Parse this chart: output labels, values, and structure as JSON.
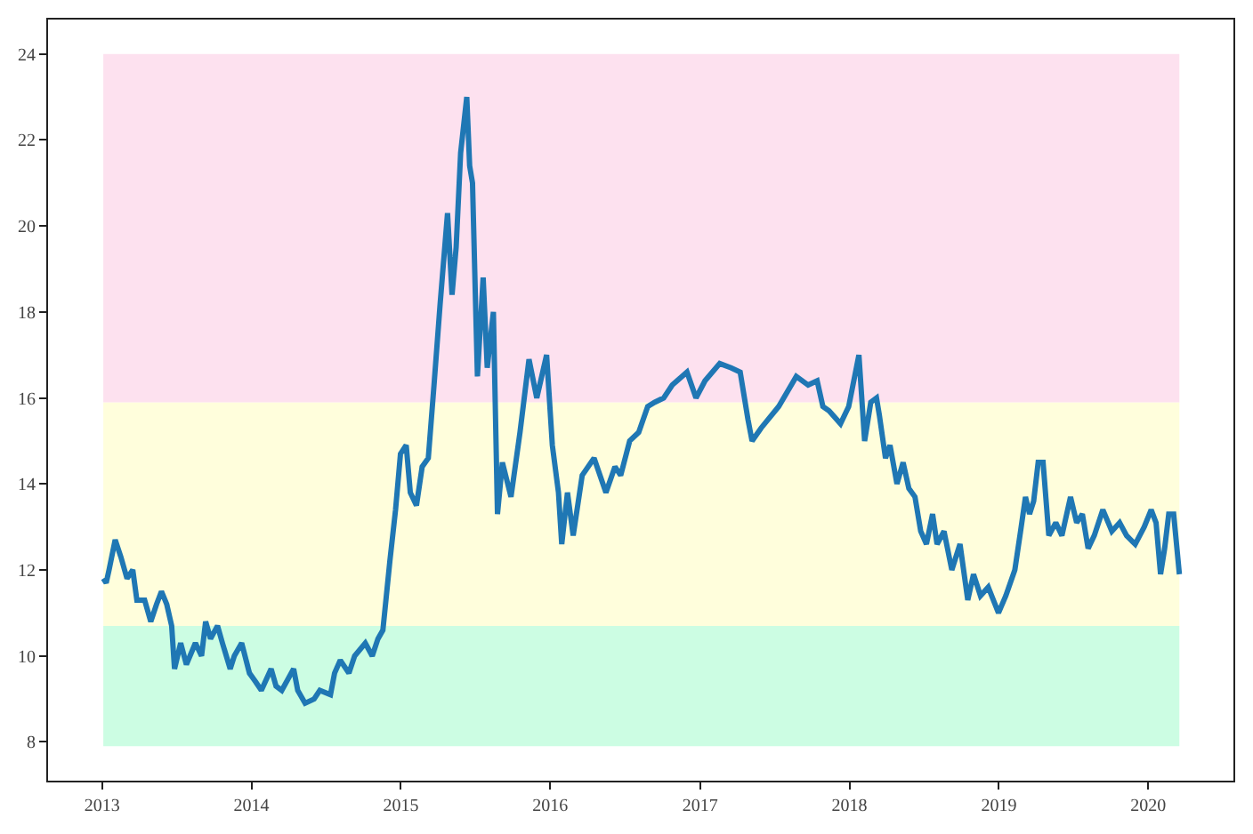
{
  "chart_data": {
    "type": "line",
    "x": [
      "2013-01-04",
      "2013-01-11",
      "2013-01-18",
      "2013-02-02",
      "2013-02-16",
      "2013-03-03",
      "2013-03-17",
      "2013-03-27",
      "2013-04-15",
      "2013-04-30",
      "2013-05-14",
      "2013-05-26",
      "2013-06-08",
      "2013-06-20",
      "2013-06-27",
      "2013-07-12",
      "2013-07-26",
      "2013-08-17",
      "2013-09-01",
      "2013-09-11",
      "2013-09-23",
      "2013-10-10",
      "2013-10-22",
      "2013-11-10",
      "2013-11-20",
      "2013-12-08",
      "2013-12-27",
      "2014-01-11",
      "2014-01-25",
      "2014-02-18",
      "2014-03-02",
      "2014-03-16",
      "2014-04-14",
      "2014-04-24",
      "2014-05-12",
      "2014-06-03",
      "2014-06-17",
      "2014-07-13",
      "2014-07-23",
      "2014-08-06",
      "2014-08-27",
      "2014-09-10",
      "2014-10-06",
      "2014-10-23",
      "2014-11-06",
      "2014-11-18",
      "2014-12-05",
      "2014-12-19",
      "2014-12-31",
      "2015-01-14",
      "2015-01-24",
      "2015-02-08",
      "2015-02-22",
      "2015-03-09",
      "2015-03-23",
      "2015-04-07",
      "2015-04-25",
      "2015-05-06",
      "2015-05-16",
      "2015-05-27",
      "2015-06-11",
      "2015-06-18",
      "2015-06-25",
      "2015-07-07",
      "2015-07-21",
      "2015-07-31",
      "2015-08-15",
      "2015-08-25",
      "2015-09-06",
      "2015-09-27",
      "2015-10-19",
      "2015-11-10",
      "2015-11-29",
      "2015-12-23",
      "2016-01-06",
      "2016-01-21",
      "2016-01-29",
      "2016-02-12",
      "2016-02-26",
      "2016-03-19",
      "2016-04-17",
      "2016-05-16",
      "2016-06-07",
      "2016-06-21",
      "2016-07-13",
      "2016-08-04",
      "2016-08-26",
      "2016-09-12",
      "2016-10-04",
      "2016-10-25",
      "2016-11-30",
      "2016-12-22",
      "2017-01-13",
      "2017-02-18",
      "2017-03-18",
      "2017-04-09",
      "2017-04-28",
      "2017-05-08",
      "2017-05-30",
      "2017-07-12",
      "2017-08-24",
      "2017-09-22",
      "2017-10-14",
      "2017-10-28",
      "2017-11-12",
      "2017-12-10",
      "2017-12-30",
      "2018-01-24",
      "2018-02-07",
      "2018-02-22",
      "2018-03-08",
      "2018-03-15",
      "2018-03-30",
      "2018-04-10",
      "2018-04-27",
      "2018-05-12",
      "2018-05-26",
      "2018-06-10",
      "2018-06-24",
      "2018-07-08",
      "2018-07-23",
      "2018-08-03",
      "2018-08-20",
      "2018-09-08",
      "2018-09-28",
      "2018-10-17",
      "2018-10-31",
      "2018-11-17",
      "2018-12-06",
      "2018-12-31",
      "2019-01-18",
      "2019-02-09",
      "2019-02-23",
      "2019-03-07",
      "2019-03-17",
      "2019-03-27",
      "2019-04-07",
      "2019-04-19",
      "2019-05-03",
      "2019-05-20",
      "2019-06-04",
      "2019-06-25",
      "2019-07-10",
      "2019-07-24",
      "2019-08-07",
      "2019-08-22",
      "2019-09-12",
      "2019-10-04",
      "2019-10-23",
      "2019-11-09",
      "2019-11-30",
      "2019-12-22",
      "2020-01-08",
      "2020-01-20",
      "2020-01-31",
      "2020-02-10",
      "2020-02-20",
      "2020-03-03",
      "2020-03-17"
    ],
    "series": [
      {
        "color": "#1f77b4",
        "values": [
          11.8,
          11.7,
          12.0,
          12.7,
          12.3,
          11.8,
          12.0,
          11.3,
          11.3,
          10.8,
          11.2,
          11.5,
          11.2,
          10.7,
          9.7,
          10.3,
          9.8,
          10.3,
          10.0,
          10.8,
          10.4,
          10.7,
          10.3,
          9.7,
          10.0,
          10.3,
          9.6,
          9.4,
          9.2,
          9.7,
          9.3,
          9.2,
          9.7,
          9.2,
          8.9,
          9.0,
          9.2,
          9.1,
          9.6,
          9.9,
          9.6,
          10.0,
          10.3,
          10.0,
          10.4,
          10.6,
          12.2,
          13.4,
          14.7,
          14.9,
          13.8,
          13.5,
          14.4,
          14.6,
          16.3,
          18.2,
          20.3,
          18.4,
          19.5,
          21.7,
          23.0,
          21.4,
          21.0,
          16.5,
          18.8,
          16.7,
          18.0,
          13.3,
          14.5,
          13.7,
          15.2,
          16.9,
          16.0,
          17.0,
          14.9,
          13.8,
          12.6,
          13.8,
          12.8,
          14.2,
          14.6,
          13.8,
          14.4,
          14.2,
          15.0,
          15.2,
          15.8,
          15.9,
          16.0,
          16.3,
          16.6,
          16.0,
          16.4,
          16.8,
          16.7,
          16.6,
          15.5,
          15.0,
          15.3,
          15.8,
          16.5,
          16.3,
          16.4,
          15.8,
          15.7,
          15.4,
          15.8,
          17.0,
          15.0,
          15.9,
          16.0,
          15.6,
          14.6,
          14.9,
          14.0,
          14.5,
          13.9,
          13.7,
          12.9,
          12.6,
          13.3,
          12.6,
          12.9,
          12.0,
          12.6,
          11.3,
          11.9,
          11.4,
          11.6,
          11.0,
          11.4,
          12.0,
          12.9,
          13.7,
          13.3,
          13.6,
          14.5,
          14.5,
          12.8,
          13.1,
          12.8,
          13.7,
          13.1,
          13.3,
          12.5,
          12.8,
          13.4,
          12.9,
          13.1,
          12.8,
          12.6,
          13.0,
          13.4,
          13.1,
          11.9,
          12.5,
          13.3,
          13.3,
          11.9
        ]
      }
    ],
    "xlim": [
      "2012-08-22",
      "2020-07-27"
    ],
    "xticks": [
      {
        "value": "2013-01-01",
        "label": "2013"
      },
      {
        "value": "2014-01-01",
        "label": "2014"
      },
      {
        "value": "2015-01-01",
        "label": "2015"
      },
      {
        "value": "2016-01-01",
        "label": "2016"
      },
      {
        "value": "2017-01-01",
        "label": "2017"
      },
      {
        "value": "2018-01-01",
        "label": "2018"
      },
      {
        "value": "2019-01-01",
        "label": "2019"
      },
      {
        "value": "2020-01-01",
        "label": "2020"
      }
    ],
    "ylim": [
      7.1,
      24.8
    ],
    "yticks": [
      8,
      10,
      12,
      14,
      16,
      18,
      20,
      22,
      24
    ],
    "bands": [
      {
        "axis": "y",
        "from": 7.9,
        "to": 10.7,
        "color": "#ccfde3"
      },
      {
        "axis": "y",
        "from": 10.7,
        "to": 15.9,
        "color": "#fffedc"
      },
      {
        "axis": "y",
        "from": 15.9,
        "to": 24.0,
        "color": "#fde1ef"
      }
    ]
  }
}
